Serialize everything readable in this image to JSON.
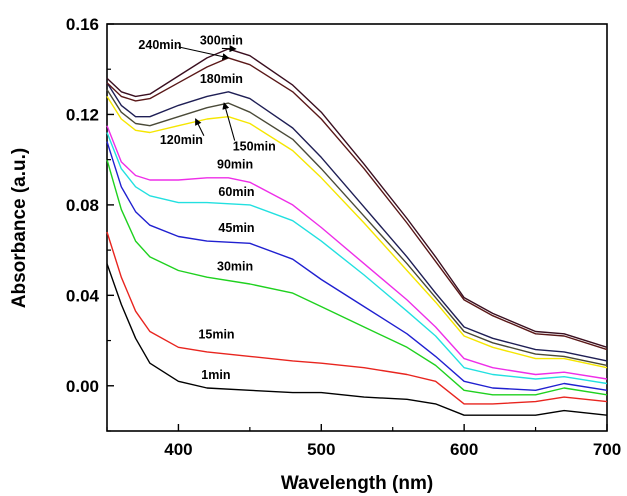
{
  "chart_data": {
    "type": "line",
    "title": "",
    "xlabel": "Wavelength (nm)",
    "ylabel": "Absorbance (a.u.)",
    "xlim": [
      350,
      700
    ],
    "ylim": [
      -0.02,
      0.16
    ],
    "xticks": [
      400,
      500,
      600,
      700
    ],
    "yticks": [
      0.0,
      0.04,
      0.08,
      0.12,
      0.16
    ],
    "ytick_labels": [
      "0.00",
      "0.04",
      "0.08",
      "0.12",
      "0.16"
    ],
    "grid": false,
    "legend": "none",
    "series": [
      {
        "name": "1min",
        "color": "#000000",
        "x": [
          350,
          360,
          370,
          380,
          400,
          420,
          450,
          480,
          500,
          530,
          560,
          580,
          600,
          620,
          650,
          670,
          700
        ],
        "y": [
          0.054,
          0.036,
          0.021,
          0.01,
          0.002,
          -0.001,
          -0.002,
          -0.003,
          -0.003,
          -0.005,
          -0.006,
          -0.008,
          -0.013,
          -0.013,
          -0.013,
          -0.011,
          -0.013
        ]
      },
      {
        "name": "15min",
        "color": "#e8251f",
        "x": [
          350,
          360,
          370,
          380,
          400,
          420,
          450,
          480,
          500,
          530,
          560,
          580,
          600,
          620,
          650,
          670,
          700
        ],
        "y": [
          0.068,
          0.048,
          0.033,
          0.024,
          0.017,
          0.015,
          0.013,
          0.011,
          0.01,
          0.008,
          0.005,
          0.002,
          -0.008,
          -0.008,
          -0.007,
          -0.005,
          -0.007
        ]
      },
      {
        "name": "30min",
        "color": "#1fd11f",
        "x": [
          350,
          360,
          370,
          380,
          400,
          420,
          450,
          480,
          500,
          530,
          560,
          580,
          600,
          620,
          650,
          670,
          700
        ],
        "y": [
          0.1,
          0.078,
          0.064,
          0.057,
          0.051,
          0.048,
          0.045,
          0.041,
          0.035,
          0.026,
          0.017,
          0.009,
          -0.002,
          -0.004,
          -0.004,
          -0.001,
          -0.004
        ]
      },
      {
        "name": "45min",
        "color": "#2020d0",
        "x": [
          350,
          360,
          370,
          380,
          400,
          420,
          450,
          480,
          500,
          530,
          560,
          580,
          600,
          620,
          650,
          670,
          700
        ],
        "y": [
          0.108,
          0.088,
          0.077,
          0.071,
          0.066,
          0.064,
          0.063,
          0.056,
          0.047,
          0.035,
          0.023,
          0.013,
          0.002,
          -0.001,
          -0.002,
          0.001,
          -0.002
        ]
      },
      {
        "name": "60min",
        "color": "#22e0e0",
        "x": [
          350,
          360,
          370,
          380,
          400,
          420,
          450,
          480,
          500,
          530,
          560,
          580,
          600,
          620,
          650,
          670,
          700
        ],
        "y": [
          0.112,
          0.096,
          0.088,
          0.084,
          0.081,
          0.081,
          0.08,
          0.073,
          0.064,
          0.049,
          0.033,
          0.022,
          0.008,
          0.005,
          0.003,
          0.004,
          0.001
        ]
      },
      {
        "name": "90min",
        "color": "#ee2ee8",
        "x": [
          350,
          360,
          370,
          380,
          400,
          420,
          435,
          450,
          480,
          500,
          530,
          560,
          580,
          600,
          620,
          650,
          670,
          700
        ],
        "y": [
          0.115,
          0.099,
          0.093,
          0.091,
          0.091,
          0.092,
          0.092,
          0.09,
          0.08,
          0.07,
          0.054,
          0.038,
          0.026,
          0.012,
          0.008,
          0.005,
          0.006,
          0.003
        ]
      },
      {
        "name": "120min",
        "color": "#f5e600",
        "x": [
          350,
          360,
          370,
          380,
          400,
          420,
          435,
          450,
          480,
          500,
          530,
          560,
          580,
          600,
          620,
          650,
          670,
          700
        ],
        "y": [
          0.128,
          0.118,
          0.113,
          0.112,
          0.115,
          0.118,
          0.119,
          0.116,
          0.104,
          0.092,
          0.072,
          0.051,
          0.037,
          0.022,
          0.017,
          0.012,
          0.012,
          0.008
        ]
      },
      {
        "name": "150min",
        "color": "#4a4a38",
        "x": [
          350,
          360,
          370,
          380,
          400,
          420,
          435,
          450,
          480,
          500,
          530,
          560,
          580,
          600,
          620,
          650,
          670,
          700
        ],
        "y": [
          0.131,
          0.121,
          0.116,
          0.115,
          0.119,
          0.123,
          0.125,
          0.121,
          0.109,
          0.096,
          0.075,
          0.054,
          0.039,
          0.024,
          0.019,
          0.014,
          0.013,
          0.009
        ]
      },
      {
        "name": "180min",
        "color": "#1f1f55",
        "x": [
          350,
          360,
          370,
          380,
          400,
          420,
          435,
          450,
          480,
          500,
          530,
          560,
          580,
          600,
          620,
          650,
          670,
          700
        ],
        "y": [
          0.134,
          0.124,
          0.119,
          0.119,
          0.124,
          0.128,
          0.13,
          0.127,
          0.114,
          0.101,
          0.079,
          0.057,
          0.041,
          0.026,
          0.021,
          0.016,
          0.015,
          0.011
        ]
      },
      {
        "name": "240min",
        "color": "#5a1818",
        "x": [
          350,
          360,
          370,
          380,
          400,
          420,
          435,
          450,
          480,
          500,
          530,
          560,
          580,
          600,
          620,
          650,
          670,
          700
        ],
        "y": [
          0.134,
          0.128,
          0.126,
          0.127,
          0.134,
          0.141,
          0.145,
          0.142,
          0.13,
          0.118,
          0.096,
          0.072,
          0.055,
          0.038,
          0.031,
          0.023,
          0.022,
          0.016
        ]
      },
      {
        "name": "300min",
        "color": "#3a0f20",
        "x": [
          350,
          360,
          370,
          380,
          400,
          420,
          435,
          450,
          480,
          500,
          530,
          560,
          580,
          600,
          620,
          650,
          670,
          700
        ],
        "y": [
          0.136,
          0.13,
          0.128,
          0.129,
          0.137,
          0.145,
          0.149,
          0.146,
          0.133,
          0.121,
          0.098,
          0.074,
          0.057,
          0.039,
          0.032,
          0.024,
          0.023,
          0.017
        ]
      }
    ],
    "annotations": [
      {
        "text": "300min",
        "series": "300min",
        "x": 415,
        "y": 0.151
      },
      {
        "text": "240min",
        "series": "240min",
        "x": 372,
        "y": 0.149
      },
      {
        "text": "180min",
        "series": "180min",
        "x": 415,
        "y": 0.134
      },
      {
        "text": "150min",
        "series": "150min",
        "x": 438,
        "y": 0.104
      },
      {
        "text": "120min",
        "series": "120min",
        "x": 387,
        "y": 0.107
      },
      {
        "text": "90min",
        "series": "90min",
        "x": 427,
        "y": 0.096
      },
      {
        "text": "60min",
        "series": "60min",
        "x": 428,
        "y": 0.084
      },
      {
        "text": "45min",
        "series": "45min",
        "x": 428,
        "y": 0.068
      },
      {
        "text": "30min",
        "series": "30min",
        "x": 427,
        "y": 0.051
      },
      {
        "text": "15min",
        "series": "15min",
        "x": 414,
        "y": 0.021
      },
      {
        "text": "1min",
        "series": "1min",
        "x": 416,
        "y": 0.003
      }
    ],
    "pointer_arrows": [
      {
        "from_label": "240min",
        "to_x": 435,
        "to_y": 0.145
      },
      {
        "from_label": "300min",
        "to_x": 440,
        "to_y": 0.149
      },
      {
        "from_label": "120min",
        "to_x": 412,
        "to_y": 0.118
      },
      {
        "from_label": "150min",
        "to_x": 432,
        "to_y": 0.125
      }
    ]
  }
}
